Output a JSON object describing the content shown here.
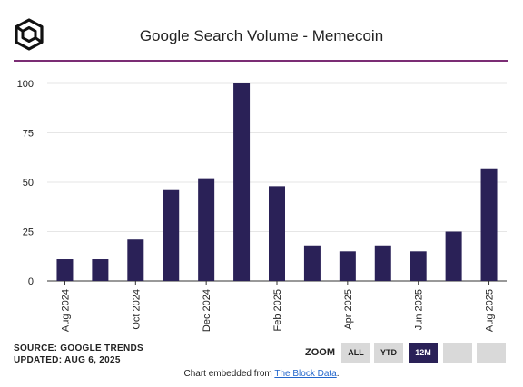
{
  "header": {
    "title": "Google Search Volume - Memecoin",
    "logo_icon": "the-block-cube-logo"
  },
  "colors": {
    "bar": "#2a2157",
    "divider": "#7b2d74",
    "grid": "#e6e6e6",
    "button_bg": "#d9d9d9",
    "button_active_bg": "#2a2157",
    "button_active_text": "#ffffff",
    "text": "#222222",
    "link": "#2266cc"
  },
  "chart_data": {
    "type": "bar",
    "categories": [
      "Aug 2024",
      "Sep 2024",
      "Oct 2024",
      "Nov 2024",
      "Dec 2024",
      "Jan 2025",
      "Feb 2025",
      "Mar 2025",
      "Apr 2025",
      "May 2025",
      "Jun 2025",
      "Jul 2025",
      "Aug 2025"
    ],
    "x_tick_labels": [
      "Aug 2024",
      "",
      "Oct 2024",
      "",
      "Dec 2024",
      "",
      "Feb 2025",
      "",
      "Apr 2025",
      "",
      "Jun 2025",
      "",
      "Aug 2025"
    ],
    "values": [
      11,
      11,
      21,
      46,
      52,
      100,
      48,
      18,
      15,
      18,
      15,
      25,
      57
    ],
    "y_ticks": [
      0,
      25,
      50,
      75,
      100
    ],
    "ylim": [
      0,
      100
    ],
    "grid": true,
    "legend": "none"
  },
  "footer": {
    "source": "SOURCE: GOOGLE TRENDS",
    "updated": "UPDATED: AUG 6, 2025",
    "embed_prefix": "Chart embedded from ",
    "embed_link": "The Block Data",
    "embed_suffix": "."
  },
  "zoom": {
    "label": "ZOOM",
    "buttons": [
      {
        "label": "ALL",
        "active": false
      },
      {
        "label": "YTD",
        "active": false
      },
      {
        "label": "12M",
        "active": true
      },
      {
        "label": "",
        "active": false
      },
      {
        "label": "",
        "active": false
      }
    ]
  }
}
